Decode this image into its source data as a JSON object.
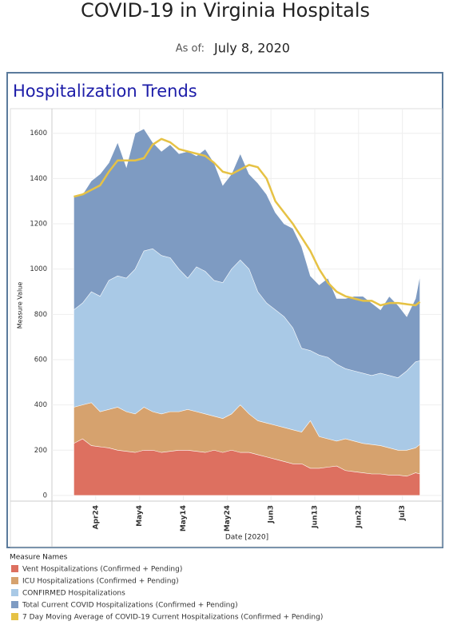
{
  "header": {
    "title": "COVID-19 in Virginia Hospitals",
    "as_of_label": "As of:",
    "as_of_date": "July 8, 2020"
  },
  "panel_title": "Hospitalization Trends",
  "chart_data": {
    "type": "area",
    "x_label": "Date [2020]",
    "y_label": "Measure Value",
    "legend_title": "Measure Names",
    "grid": true,
    "xlim": [
      "2020-04-14",
      "2020-07-12"
    ],
    "ylim": [
      -25,
      1705
    ],
    "yticks": [
      0,
      200,
      400,
      600,
      800,
      1000,
      1200,
      1400,
      1600
    ],
    "xticks": [
      {
        "value": "2020-04-24",
        "label": "Apr24"
      },
      {
        "value": "2020-05-04",
        "label": "May4"
      },
      {
        "value": "2020-05-14",
        "label": "May14"
      },
      {
        "value": "2020-05-24",
        "label": "May24"
      },
      {
        "value": "2020-06-03",
        "label": "Jun3"
      },
      {
        "value": "2020-06-13",
        "label": "Jun13"
      },
      {
        "value": "2020-06-23",
        "label": "Jun23"
      },
      {
        "value": "2020-07-03",
        "label": "Jul3"
      }
    ],
    "x": [
      "2020-04-19",
      "2020-04-21",
      "2020-04-23",
      "2020-04-25",
      "2020-04-27",
      "2020-04-29",
      "2020-05-01",
      "2020-05-03",
      "2020-05-05",
      "2020-05-07",
      "2020-05-09",
      "2020-05-11",
      "2020-05-13",
      "2020-05-15",
      "2020-05-17",
      "2020-05-19",
      "2020-05-21",
      "2020-05-23",
      "2020-05-25",
      "2020-05-27",
      "2020-05-29",
      "2020-05-31",
      "2020-06-02",
      "2020-06-04",
      "2020-06-06",
      "2020-06-08",
      "2020-06-10",
      "2020-06-12",
      "2020-06-14",
      "2020-06-16",
      "2020-06-18",
      "2020-06-20",
      "2020-06-22",
      "2020-06-24",
      "2020-06-26",
      "2020-06-28",
      "2020-06-30",
      "2020-07-02",
      "2020-07-04",
      "2020-07-06",
      "2020-07-07"
    ],
    "series": [
      {
        "name": "Vent Hospitalizations (Confirmed + Pending)",
        "color": "#dd7060",
        "mark": "area",
        "values": [
          230,
          250,
          220,
          215,
          210,
          200,
          195,
          190,
          200,
          200,
          190,
          195,
          200,
          200,
          195,
          190,
          200,
          190,
          200,
          190,
          190,
          180,
          170,
          160,
          150,
          140,
          140,
          120,
          120,
          125,
          130,
          110,
          105,
          100,
          95,
          95,
          90,
          90,
          85,
          100,
          95
        ]
      },
      {
        "name": "ICU Hospitalizations (Confirmed + Pending)",
        "color": "#d6a26e",
        "mark": "area",
        "values": [
          390,
          400,
          410,
          370,
          380,
          390,
          370,
          360,
          390,
          370,
          360,
          370,
          370,
          380,
          370,
          360,
          350,
          340,
          360,
          400,
          360,
          330,
          320,
          310,
          300,
          290,
          280,
          330,
          260,
          250,
          240,
          250,
          240,
          230,
          225,
          220,
          210,
          200,
          200,
          210,
          225
        ]
      },
      {
        "name": "CONFIRMED Hospitalizations",
        "color": "#a9c9e6",
        "mark": "area",
        "values": [
          820,
          850,
          900,
          880,
          950,
          970,
          960,
          1000,
          1080,
          1090,
          1060,
          1050,
          1000,
          960,
          1010,
          990,
          950,
          940,
          1000,
          1040,
          1000,
          900,
          850,
          820,
          790,
          740,
          650,
          640,
          620,
          610,
          580,
          560,
          550,
          540,
          530,
          540,
          530,
          520,
          550,
          590,
          595
        ]
      },
      {
        "name": "Total Current COVID Hospitalizations (Confirmed + Pending)",
        "color": "#7e9bc2",
        "mark": "area",
        "values": [
          1325,
          1330,
          1390,
          1420,
          1470,
          1560,
          1450,
          1600,
          1620,
          1560,
          1520,
          1550,
          1510,
          1520,
          1500,
          1530,
          1470,
          1370,
          1420,
          1510,
          1420,
          1380,
          1330,
          1250,
          1200,
          1180,
          1100,
          970,
          930,
          960,
          870,
          870,
          880,
          880,
          850,
          820,
          880,
          840,
          790,
          870,
          970
        ]
      },
      {
        "name": "7 Day Moving Average of COVID-19 Current Hospitalizations (Confirmed + Pending)",
        "color": "#e6c245",
        "mark": "line",
        "values": [
          1320,
          1330,
          1350,
          1370,
          1430,
          1480,
          1480,
          1480,
          1490,
          1550,
          1575,
          1560,
          1530,
          1520,
          1510,
          1500,
          1470,
          1430,
          1420,
          1440,
          1460,
          1450,
          1400,
          1300,
          1250,
          1200,
          1140,
          1080,
          1000,
          940,
          900,
          880,
          870,
          860,
          860,
          840,
          850,
          850,
          845,
          840,
          855
        ]
      }
    ]
  }
}
